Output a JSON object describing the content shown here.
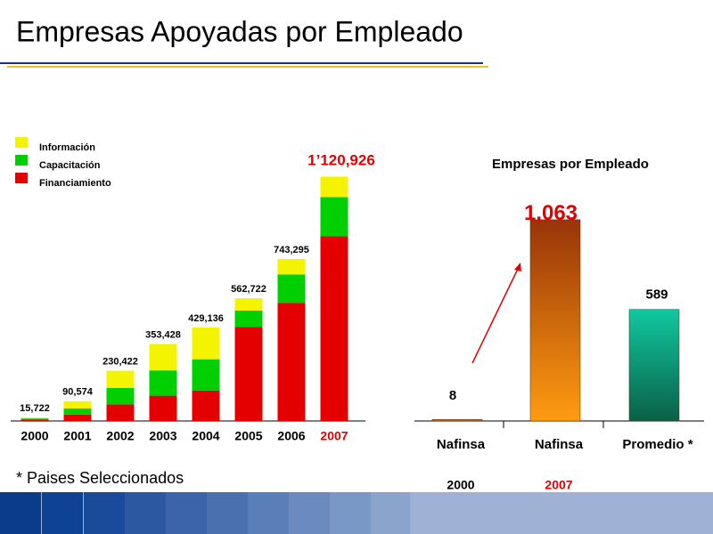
{
  "title": "Empresas Apoyadas por Empleado",
  "footnote": "* Paises Seleccionados",
  "chart_data": [
    {
      "type": "stacked_bar",
      "categories": [
        "2000",
        "2001",
        "2002",
        "2003",
        "2004",
        "2005",
        "2006",
        "2007"
      ],
      "category_label_colors": [
        "#000000",
        "#000000",
        "#000000",
        "#000000",
        "#000000",
        "#000000",
        "#000000",
        "#e00000"
      ],
      "series": [
        {
          "name": "Financiamiento",
          "color": "#e40000",
          "values": [
            6300,
            29500,
            76000,
            116000,
            140000,
            430500,
            542000,
            847600
          ]
        },
        {
          "name": "Capacitación",
          "color": "#00d000",
          "values": [
            5200,
            27600,
            76000,
            116000,
            143000,
            76000,
            130000,
            179300
          ]
        },
        {
          "name": "Información",
          "color": "#f4f400",
          "values": [
            4222,
            33474,
            78422,
            121428,
            146136,
            56222,
            71295,
            94026
          ]
        }
      ],
      "totals": {
        "values": [
          15722,
          90574,
          230422,
          353428,
          429136,
          562722,
          743295,
          1120926
        ],
        "value_labels": [
          "15,722",
          "90,574",
          "230,422",
          "353,428",
          "429,136",
          "562,722",
          "743,295",
          "1’120,926"
        ],
        "label_colors": [
          "#000000",
          "#000000",
          "#000000",
          "#000000",
          "#000000",
          "#000000",
          "#000000",
          "#e00000"
        ]
      },
      "ylim": [
        0,
        1200000
      ],
      "legend": "top-left"
    },
    {
      "type": "bar",
      "title": "Empresas por Empleado",
      "categories": [
        "Nafinsa",
        "Nafinsa",
        "Promedio *"
      ],
      "sublabels": [
        "2000",
        "2007",
        null
      ],
      "sublabel_colors": [
        "#000000",
        "#e00000",
        null
      ],
      "values": [
        8,
        1063,
        589
      ],
      "value_labels": [
        "8",
        "1,063",
        "589"
      ],
      "value_label_colors": [
        "#000000",
        "#e00000",
        "#000000"
      ],
      "gradients": [
        [
          "#e07a20",
          "#c0500c"
        ],
        [
          "#983408",
          "#ff9c10"
        ],
        [
          "#10c8a0",
          "#0a6046"
        ]
      ],
      "ylim": [
        0,
        1100
      ]
    }
  ]
}
